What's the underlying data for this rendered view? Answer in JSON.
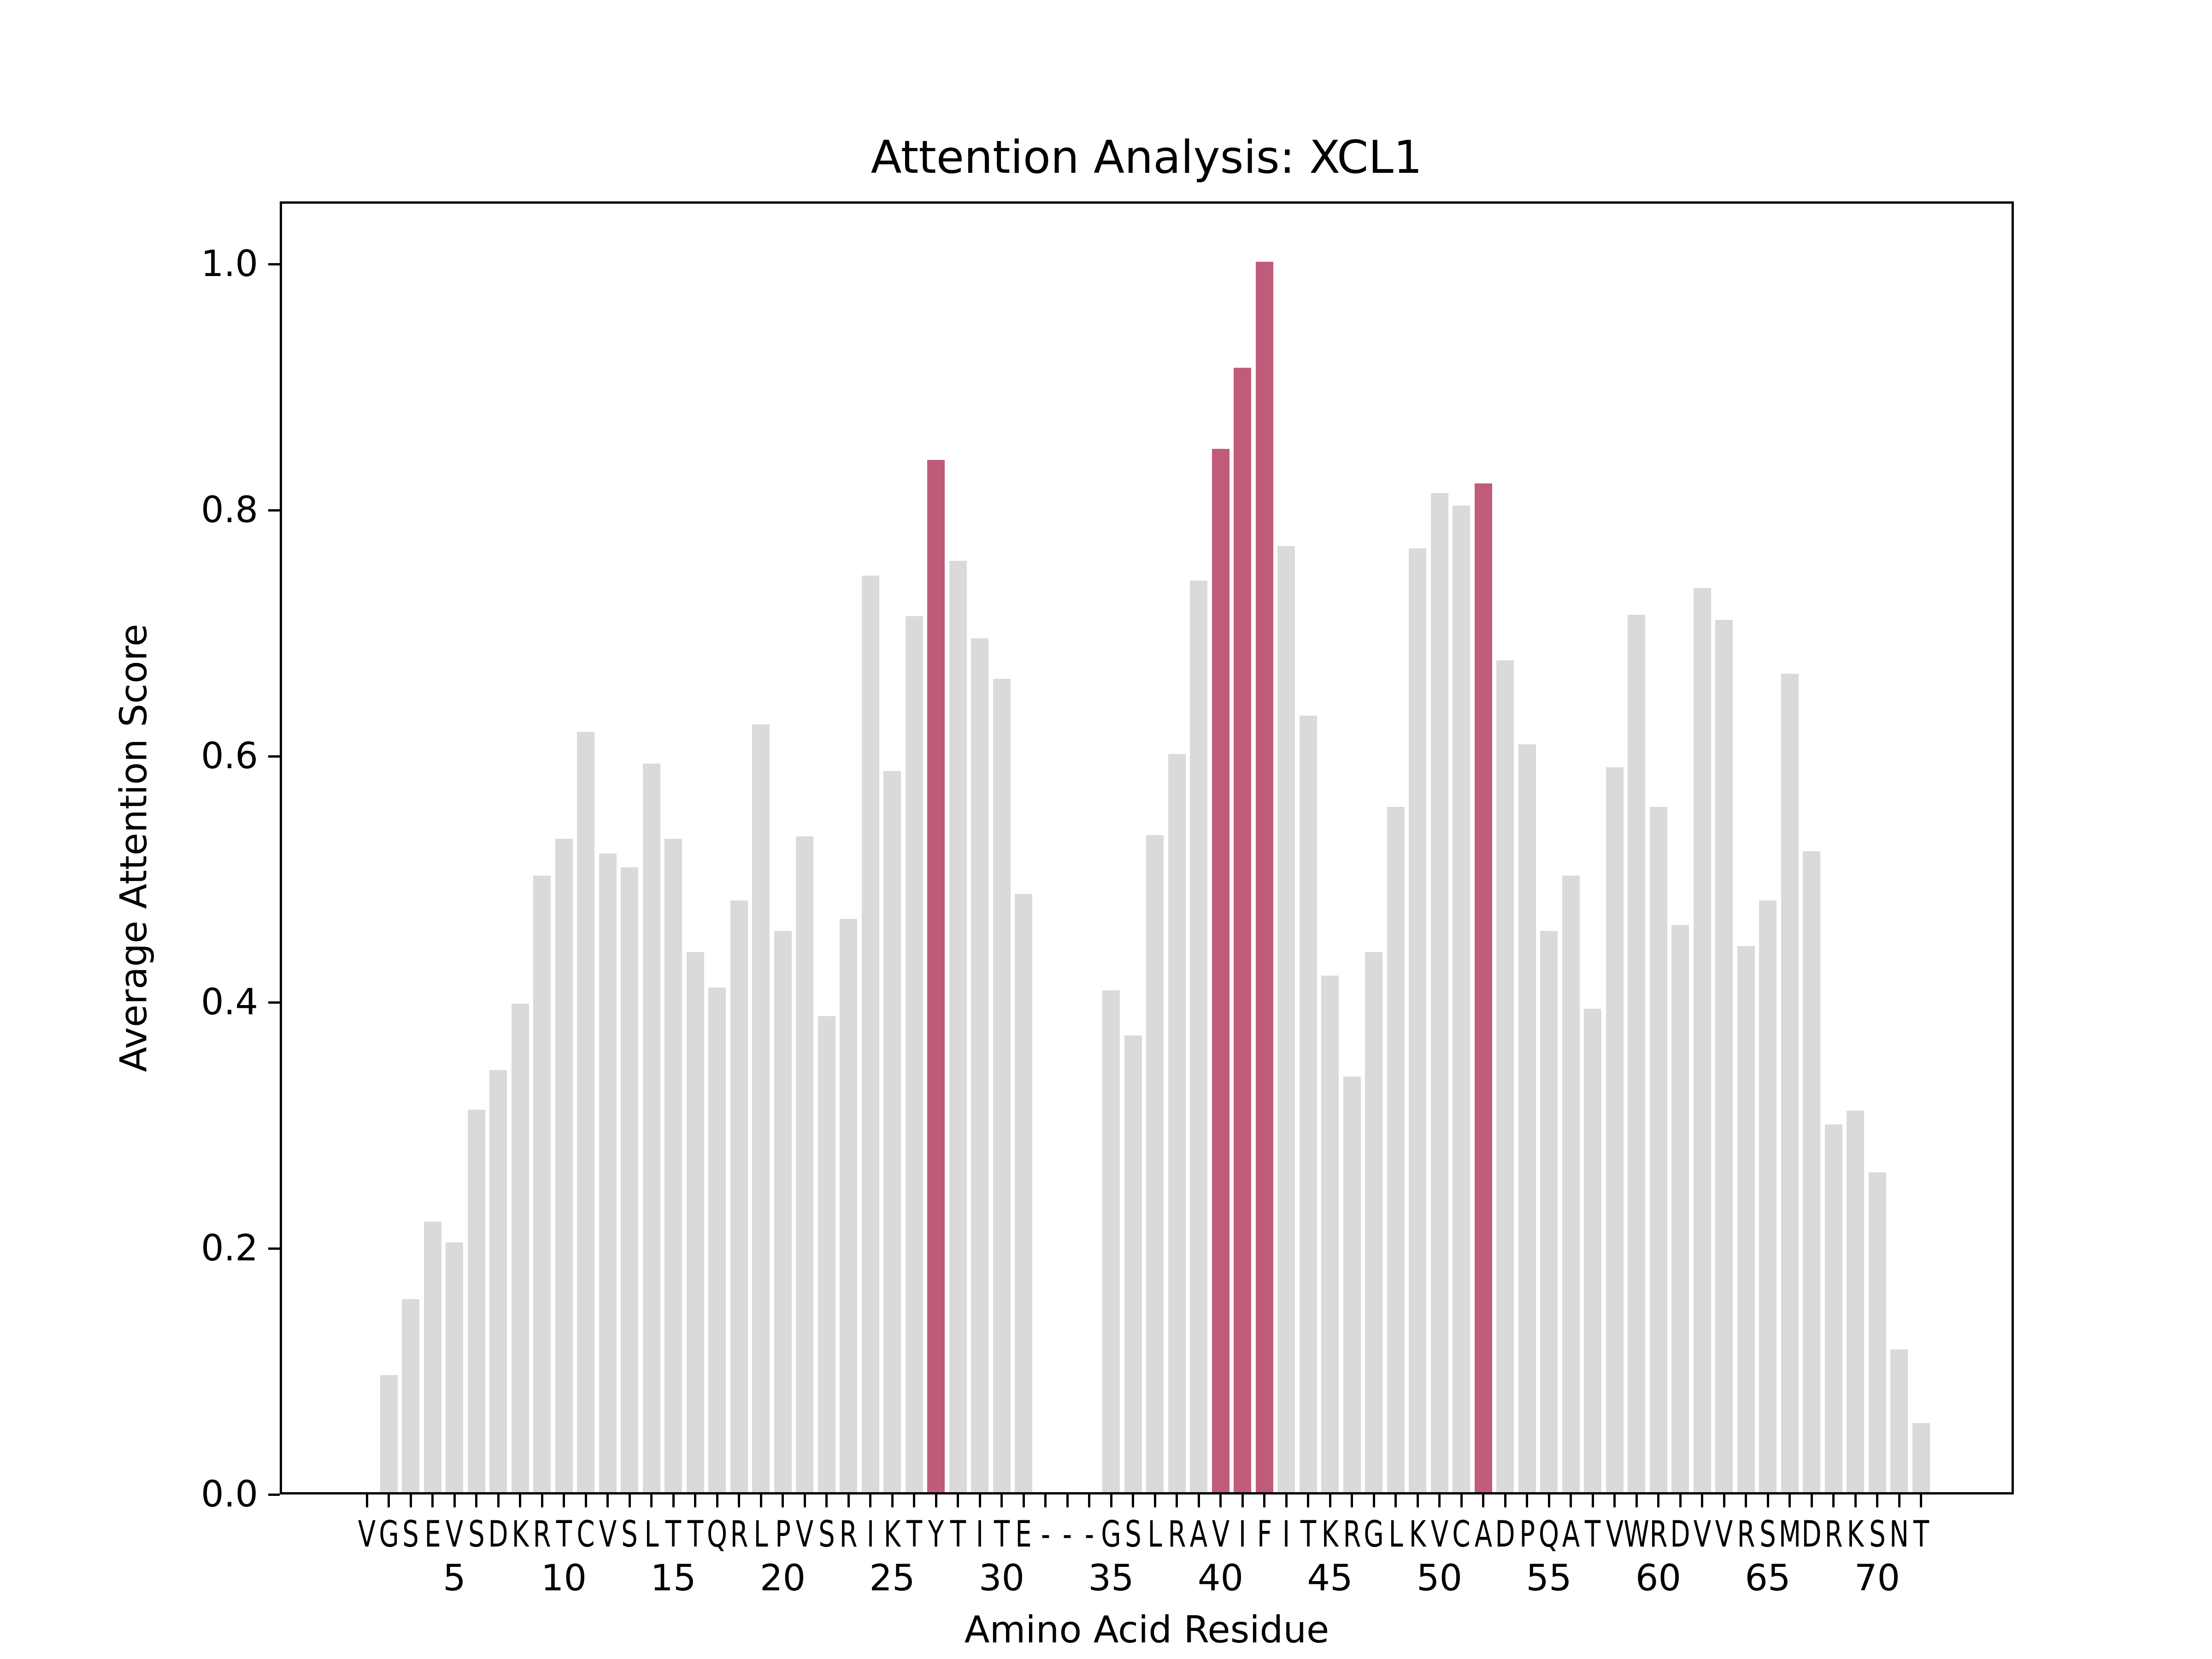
{
  "chart_data": {
    "type": "bar",
    "title": "Attention Analysis: XCL1",
    "xlabel": "Amino Acid Residue",
    "ylabel": "Average Attention Score",
    "ylim": [
      0.0,
      1.05
    ],
    "yticks": [
      "0.0",
      "0.2",
      "0.4",
      "0.6",
      "0.8",
      "1.0"
    ],
    "xtick_numbers": [
      5,
      10,
      15,
      20,
      25,
      30,
      35,
      40,
      45,
      50,
      55,
      60,
      65,
      70
    ],
    "grid": false,
    "legend": null,
    "colors": {
      "default": "#DADADA",
      "highlight": "#C05C7A"
    },
    "highlighted_positions": [
      27,
      40,
      41,
      42,
      52
    ],
    "categories": [
      "V",
      "G",
      "S",
      "E",
      "V",
      "S",
      "D",
      "K",
      "R",
      "T",
      "C",
      "V",
      "S",
      "L",
      "T",
      "T",
      "Q",
      "R",
      "L",
      "P",
      "V",
      "S",
      "R",
      "I",
      "K",
      "T",
      "Y",
      "T",
      "I",
      "T",
      "E",
      "-",
      "-",
      "-",
      "G",
      "S",
      "L",
      "R",
      "A",
      "V",
      "I",
      "F",
      "I",
      "T",
      "K",
      "R",
      "G",
      "L",
      "K",
      "V",
      "C",
      "A",
      "D",
      "P",
      "Q",
      "A",
      "T",
      "V",
      "W",
      "R",
      "D",
      "V",
      "V",
      "R",
      "S",
      "M",
      "D",
      "R",
      "K",
      "S",
      "N",
      "T"
    ],
    "values": [
      0.0,
      0.095,
      0.157,
      0.22,
      0.203,
      0.311,
      0.343,
      0.397,
      0.501,
      0.531,
      0.618,
      0.519,
      0.508,
      0.592,
      0.531,
      0.439,
      0.41,
      0.481,
      0.624,
      0.456,
      0.533,
      0.387,
      0.466,
      0.745,
      0.586,
      0.712,
      0.839,
      0.757,
      0.694,
      0.661,
      0.486,
      0.0,
      0.0,
      0.0,
      0.408,
      0.371,
      0.534,
      0.6,
      0.741,
      0.848,
      0.914,
      1.0,
      0.769,
      0.631,
      0.42,
      0.338,
      0.439,
      0.557,
      0.767,
      0.812,
      0.802,
      0.82,
      0.676,
      0.608,
      0.456,
      0.501,
      0.393,
      0.589,
      0.713,
      0.557,
      0.461,
      0.735,
      0.709,
      0.444,
      0.481,
      0.665,
      0.521,
      0.299,
      0.31,
      0.26,
      0.116,
      0.056
    ]
  }
}
